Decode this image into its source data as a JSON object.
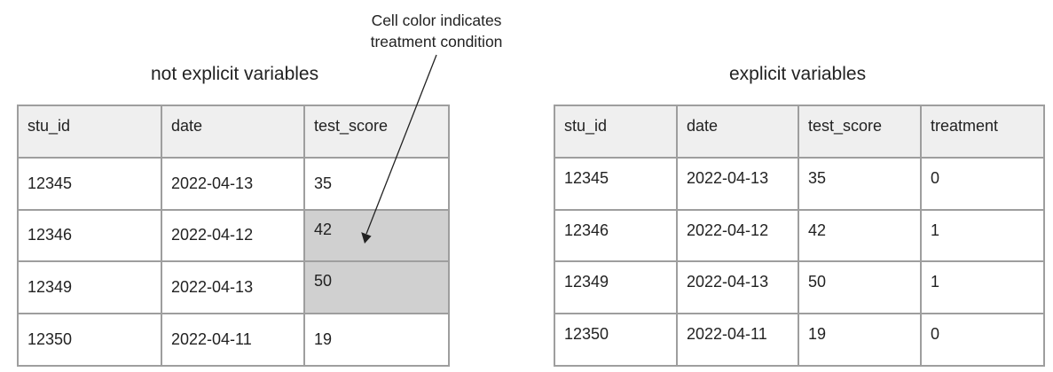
{
  "left_table": {
    "title": "not explicit variables",
    "headers": [
      "stu_id",
      "date",
      "test_score"
    ],
    "rows": [
      [
        "12345",
        "2022-04-13",
        "35"
      ],
      [
        "12346",
        "2022-04-12",
        "42"
      ],
      [
        "12349",
        "2022-04-13",
        "50"
      ],
      [
        "12350",
        "2022-04-11",
        "19"
      ]
    ],
    "shaded_color": "#d0d0d0"
  },
  "right_table": {
    "title": "explicit variables",
    "headers": [
      "stu_id",
      "date",
      "test_score",
      "treatment"
    ],
    "rows": [
      [
        "12345",
        "2022-04-13",
        "35",
        "0"
      ],
      [
        "12346",
        "2022-04-12",
        "42",
        "1"
      ],
      [
        "12349",
        "2022-04-13",
        "50",
        "1"
      ],
      [
        "12350",
        "2022-04-11",
        "19",
        "0"
      ]
    ]
  },
  "annotation": {
    "line1": "Cell color indicates",
    "line2": "treatment condition"
  },
  "colors": {
    "header_bg": "#efefef",
    "border": "#9e9e9e",
    "shaded": "#d0d0d0"
  }
}
